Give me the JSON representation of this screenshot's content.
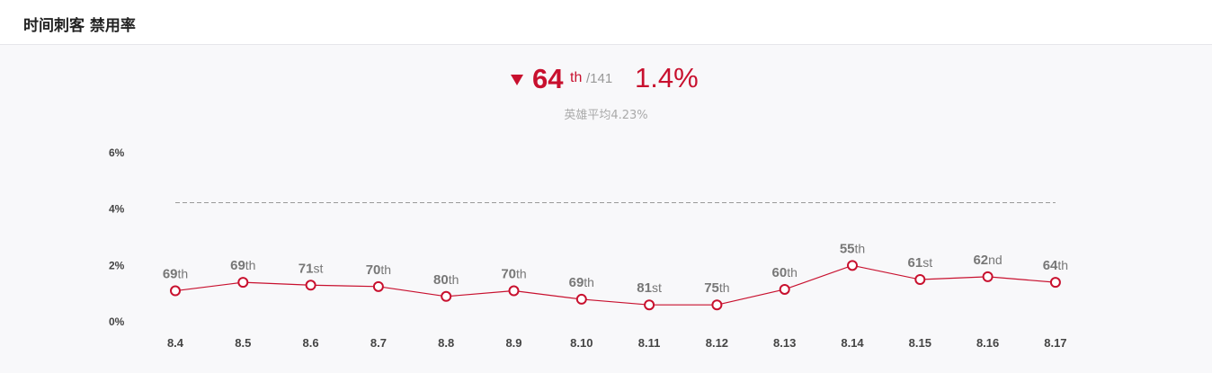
{
  "header": {
    "title": "时间刺客 禁用率"
  },
  "summary": {
    "rank": "64",
    "rank_suffix": "th",
    "total": "/141",
    "rate": "1.4%",
    "average_label": "英雄平均4.23%",
    "trend_icon": "down-triangle-icon"
  },
  "colors": {
    "accent": "#c8102e",
    "avg_line": "#999999"
  },
  "chart_data": {
    "type": "line",
    "categories": [
      "8.4",
      "8.5",
      "8.6",
      "8.7",
      "8.8",
      "8.9",
      "8.10",
      "8.11",
      "8.12",
      "8.13",
      "8.14",
      "8.15",
      "8.16",
      "8.17"
    ],
    "values": [
      1.1,
      1.4,
      1.3,
      1.25,
      0.9,
      1.1,
      0.8,
      0.6,
      0.6,
      1.15,
      2.0,
      1.5,
      1.6,
      1.4
    ],
    "rank_numbers": [
      "69",
      "69",
      "71",
      "70",
      "80",
      "70",
      "69",
      "81",
      "75",
      "60",
      "55",
      "61",
      "62",
      "64"
    ],
    "rank_suffixes": [
      "th",
      "th",
      "st",
      "th",
      "th",
      "th",
      "th",
      "st",
      "th",
      "th",
      "th",
      "st",
      "nd",
      "th"
    ],
    "average": 4.23,
    "ylim": [
      0,
      6
    ],
    "yticks": [
      "0%",
      "2%",
      "4%",
      "6%"
    ],
    "title": "",
    "xlabel": "",
    "ylabel": ""
  }
}
